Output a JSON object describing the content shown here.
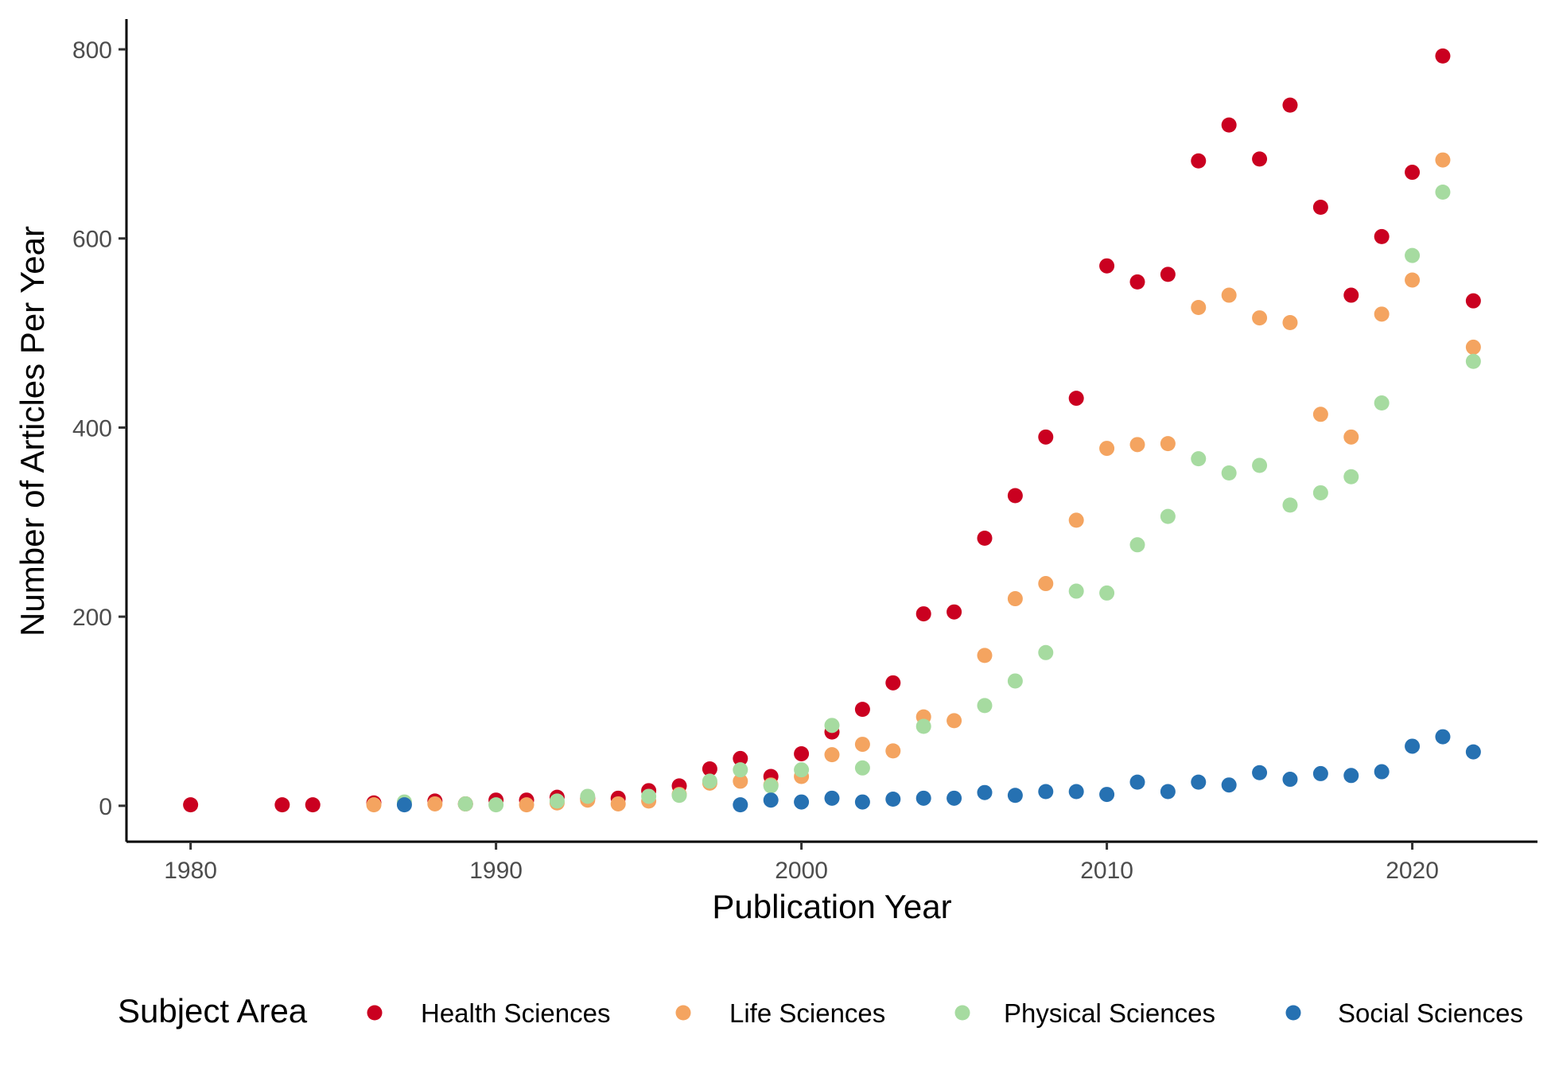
{
  "chart_data": {
    "type": "scatter",
    "title": "",
    "xlabel": "Publication Year",
    "ylabel": "Number of Articles Per Year",
    "xlim": [
      1977.9,
      2024.1
    ],
    "ylim": [
      -38,
      832
    ],
    "x_ticks": [
      1980,
      1990,
      2000,
      2010,
      2020
    ],
    "y_ticks": [
      0,
      200,
      400,
      600,
      800
    ],
    "grid": false,
    "legend": {
      "title": "Subject Area",
      "placement": "bottom"
    },
    "series": [
      {
        "name": "Health Sciences",
        "color": "#ca0020",
        "points": [
          [
            1980,
            1
          ],
          [
            1983,
            1
          ],
          [
            1984,
            1
          ],
          [
            1986,
            3
          ],
          [
            1988,
            5
          ],
          [
            1989,
            2
          ],
          [
            1990,
            6
          ],
          [
            1991,
            6
          ],
          [
            1992,
            9
          ],
          [
            1993,
            8
          ],
          [
            1994,
            8
          ],
          [
            1995,
            16
          ],
          [
            1996,
            21
          ],
          [
            1997,
            39
          ],
          [
            1998,
            50
          ],
          [
            1999,
            31
          ],
          [
            2000,
            55
          ],
          [
            2001,
            78
          ],
          [
            2002,
            102
          ],
          [
            2003,
            130
          ],
          [
            2004,
            203
          ],
          [
            2005,
            205
          ],
          [
            2006,
            283
          ],
          [
            2007,
            328
          ],
          [
            2008,
            390
          ],
          [
            2009,
            431
          ],
          [
            2010,
            571
          ],
          [
            2011,
            554
          ],
          [
            2012,
            562
          ],
          [
            2013,
            682
          ],
          [
            2014,
            720
          ],
          [
            2015,
            684
          ],
          [
            2016,
            741
          ],
          [
            2017,
            633
          ],
          [
            2018,
            540
          ],
          [
            2019,
            602
          ],
          [
            2020,
            670
          ],
          [
            2021,
            793
          ],
          [
            2022,
            534
          ]
        ]
      },
      {
        "name": "Life Sciences",
        "color": "#f4a460",
        "points": [
          [
            1986,
            1
          ],
          [
            1988,
            2
          ],
          [
            1989,
            2
          ],
          [
            1991,
            1
          ],
          [
            1992,
            3
          ],
          [
            1993,
            6
          ],
          [
            1994,
            2
          ],
          [
            1995,
            5
          ],
          [
            1996,
            12
          ],
          [
            1997,
            24
          ],
          [
            1998,
            26
          ],
          [
            1999,
            22
          ],
          [
            2000,
            31
          ],
          [
            2001,
            54
          ],
          [
            2002,
            65
          ],
          [
            2003,
            58
          ],
          [
            2004,
            94
          ],
          [
            2005,
            90
          ],
          [
            2006,
            159
          ],
          [
            2007,
            219
          ],
          [
            2008,
            235
          ],
          [
            2009,
            302
          ],
          [
            2010,
            378
          ],
          [
            2011,
            382
          ],
          [
            2012,
            383
          ],
          [
            2013,
            527
          ],
          [
            2014,
            540
          ],
          [
            2015,
            516
          ],
          [
            2016,
            511
          ],
          [
            2017,
            414
          ],
          [
            2018,
            390
          ],
          [
            2019,
            520
          ],
          [
            2020,
            556
          ],
          [
            2021,
            683
          ],
          [
            2022,
            485
          ]
        ]
      },
      {
        "name": "Physical Sciences",
        "color": "#a6dba0",
        "points": [
          [
            1987,
            4
          ],
          [
            1989,
            2
          ],
          [
            1990,
            1
          ],
          [
            1992,
            5
          ],
          [
            1993,
            10
          ],
          [
            1995,
            10
          ],
          [
            1996,
            11
          ],
          [
            1997,
            26
          ],
          [
            1998,
            38
          ],
          [
            1999,
            21
          ],
          [
            2000,
            38
          ],
          [
            2001,
            85
          ],
          [
            2002,
            40
          ],
          [
            2004,
            84
          ],
          [
            2006,
            106
          ],
          [
            2007,
            132
          ],
          [
            2008,
            162
          ],
          [
            2009,
            227
          ],
          [
            2010,
            225
          ],
          [
            2011,
            276
          ],
          [
            2012,
            306
          ],
          [
            2013,
            367
          ],
          [
            2014,
            352
          ],
          [
            2015,
            360
          ],
          [
            2016,
            318
          ],
          [
            2017,
            331
          ],
          [
            2018,
            348
          ],
          [
            2019,
            426
          ],
          [
            2020,
            582
          ],
          [
            2021,
            649
          ],
          [
            2022,
            470
          ]
        ]
      },
      {
        "name": "Social Sciences",
        "color": "#2671b2",
        "points": [
          [
            1987,
            1
          ],
          [
            1998,
            1
          ],
          [
            1999,
            6
          ],
          [
            2000,
            4
          ],
          [
            2001,
            8
          ],
          [
            2002,
            4
          ],
          [
            2003,
            7
          ],
          [
            2004,
            8
          ],
          [
            2005,
            8
          ],
          [
            2006,
            14
          ],
          [
            2007,
            11
          ],
          [
            2008,
            15
          ],
          [
            2009,
            15
          ],
          [
            2010,
            12
          ],
          [
            2011,
            25
          ],
          [
            2012,
            15
          ],
          [
            2013,
            25
          ],
          [
            2014,
            22
          ],
          [
            2015,
            35
          ],
          [
            2016,
            28
          ],
          [
            2017,
            34
          ],
          [
            2018,
            32
          ],
          [
            2019,
            36
          ],
          [
            2020,
            63
          ],
          [
            2021,
            73
          ],
          [
            2022,
            57
          ]
        ]
      }
    ]
  }
}
